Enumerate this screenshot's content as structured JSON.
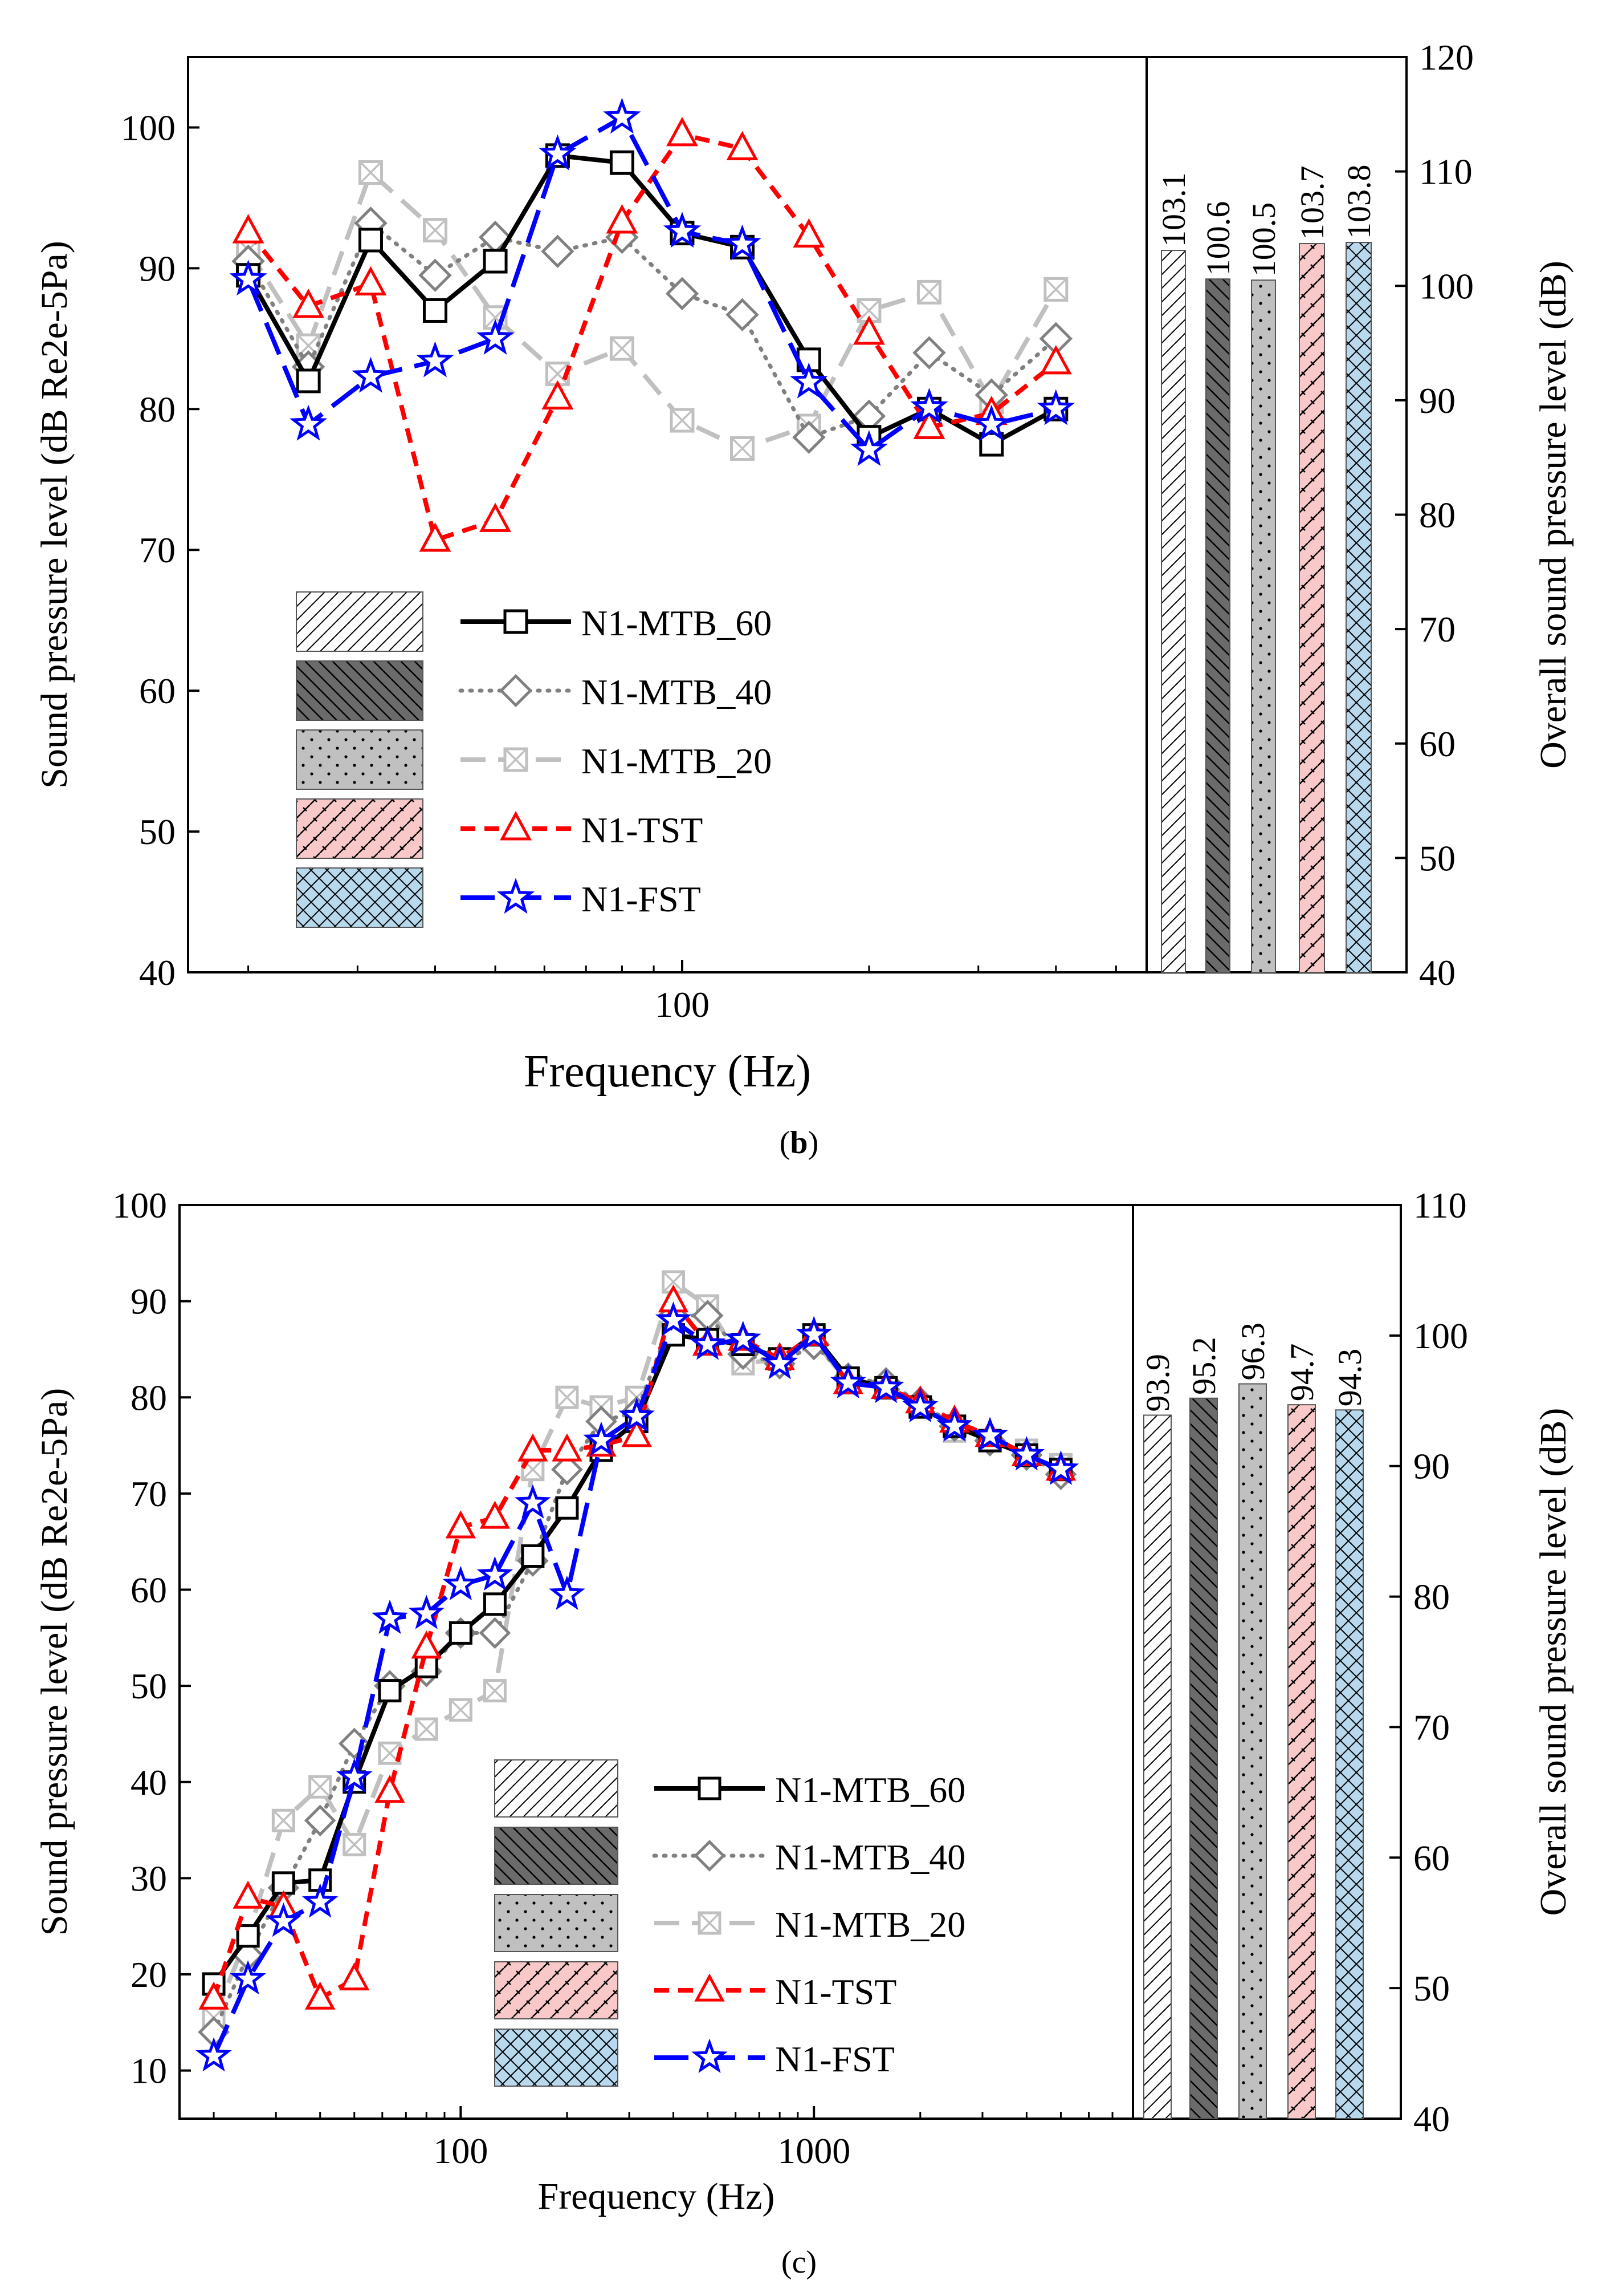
{
  "series_styles": [
    {
      "name": "N1-MTB_60",
      "color": "#000000",
      "marker": "square",
      "dash": "solid"
    },
    {
      "name": "N1-MTB_40",
      "color": "#808080",
      "marker": "diamond",
      "dash": "dot"
    },
    {
      "name": "N1-MTB_20",
      "color": "#c0c0c0",
      "marker": "boxx",
      "dash": "dash"
    },
    {
      "name": "N1-TST",
      "color": "#ff0000",
      "marker": "triangle",
      "dash": "shortdash"
    },
    {
      "name": "N1-FST",
      "color": "#0000ff",
      "marker": "star",
      "dash": "longdash"
    }
  ],
  "bar_fills": [
    "#ffffff",
    "#6b6b6b",
    "#c0c0c0",
    "#f9c8c8",
    "#b8d8ee"
  ],
  "chart_data": [
    {
      "type": "line",
      "caption": "(b)",
      "caption_bold": "b",
      "xlabel": "Frequency (Hz)",
      "ylabel": "Sound pressure level (dB Re2e-5Pa)",
      "ylabel_right": "Overall sound pressure level (dB)",
      "xscale": "log",
      "xlim": [
        16,
        560
      ],
      "ylim": [
        40,
        105
      ],
      "ylim_right": [
        40,
        120
      ],
      "xticks": [
        100
      ],
      "xtick_labels": [
        "100"
      ],
      "yticks": [
        40,
        50,
        60,
        70,
        80,
        90,
        100
      ],
      "ytick_labels": [
        "40",
        "50",
        "60",
        "70",
        "80",
        "90",
        "100"
      ],
      "yticks_right": [
        40,
        50,
        60,
        70,
        80,
        90,
        100,
        110,
        120
      ],
      "ytick_labels_right": [
        "40",
        "50",
        "60",
        "70",
        "80",
        "90",
        "100",
        "110",
        "120"
      ],
      "x": [
        20,
        25,
        31.5,
        40,
        50,
        63,
        80,
        100,
        125,
        160,
        200,
        250,
        315,
        400
      ],
      "series": [
        {
          "name": "N1-MTB_60",
          "values": [
            89.5,
            82,
            92,
            87,
            90.5,
            98,
            97.5,
            92.5,
            91.5,
            83.5,
            78,
            80,
            77.5,
            80
          ]
        },
        {
          "name": "N1-MTB_40",
          "values": [
            90.5,
            83,
            93.2,
            89.5,
            92.2,
            91.2,
            92.2,
            88.2,
            86.7,
            78,
            79.5,
            84,
            81,
            85
          ]
        },
        {
          "name": "N1-MTB_20",
          "values": [
            91.3,
            84.5,
            96.8,
            92.7,
            86.5,
            82.5,
            84.3,
            79.2,
            77.2,
            78.8,
            87,
            88.3,
            80.5,
            88.5
          ]
        },
        {
          "name": "N1-TST",
          "values": [
            92.6,
            87.3,
            88.9,
            70.7,
            72.1,
            80.8,
            93.3,
            99.5,
            98.5,
            92.3,
            85.4,
            78.7,
            79.7,
            83.3
          ]
        },
        {
          "name": "N1-FST",
          "values": [
            89.2,
            78.9,
            82.3,
            83.4,
            85,
            98.1,
            100.7,
            92.6,
            91.7,
            81.9,
            77.1,
            80.1,
            78.9,
            80
          ]
        }
      ],
      "bars": {
        "values": [
          103.1,
          100.6,
          100.5,
          103.7,
          103.8
        ],
        "labels": [
          "103.1",
          "100.6",
          "100.5",
          "103.7",
          "103.8"
        ]
      },
      "legend": {
        "labels": [
          "N1-MTB_60",
          "N1-MTB_40",
          "N1-MTB_20",
          "N1-TST",
          "N1-FST"
        ],
        "placement": "lower-left"
      }
    },
    {
      "type": "line",
      "caption": "(c)",
      "caption_bold": "",
      "xlabel": "Frequency (Hz)",
      "ylabel": "Sound pressure level (dB Re2e-5Pa)",
      "ylabel_right": "Overall sound pressure level (dB)",
      "xscale": "log",
      "xlim": [
        16,
        8000
      ],
      "ylim": [
        5,
        100
      ],
      "ylim_right": [
        40,
        110
      ],
      "xticks": [
        100,
        1000
      ],
      "xtick_labels": [
        "100",
        "1000"
      ],
      "yticks": [
        10,
        20,
        30,
        40,
        50,
        60,
        70,
        80,
        90,
        100
      ],
      "ytick_labels": [
        "10",
        "20",
        "30",
        "40",
        "50",
        "60",
        "70",
        "80",
        "90",
        "100"
      ],
      "yticks_right": [
        40,
        50,
        60,
        70,
        80,
        90,
        100,
        110
      ],
      "ytick_labels_right": [
        "40",
        "50",
        "60",
        "70",
        "80",
        "90",
        "100",
        "110"
      ],
      "x": [
        20,
        25,
        31.5,
        40,
        50,
        63,
        80,
        100,
        125,
        160,
        200,
        250,
        315,
        400,
        500,
        630,
        800,
        1000,
        1250,
        1600,
        2000,
        2500,
        3150,
        4000,
        5000
      ],
      "series": [
        {
          "name": "N1-MTB_60",
          "values": [
            19,
            24,
            29.5,
            29.8,
            40,
            49.5,
            52,
            55.5,
            58.5,
            63.5,
            68.5,
            74.5,
            77.5,
            86.5,
            86,
            85.5,
            84,
            86.5,
            82,
            81,
            79,
            77,
            75.5,
            74,
            72.5
          ]
        },
        {
          "name": "N1-MTB_40",
          "values": [
            14,
            22,
            29,
            36,
            44,
            50,
            51.5,
            55.5,
            55.5,
            63,
            72.5,
            77.5,
            78.5,
            88.5,
            88.5,
            84.5,
            83.5,
            85.5,
            82,
            81.5,
            79.5,
            77,
            75.5,
            74,
            72
          ]
        },
        {
          "name": "N1-MTB_20",
          "values": [
            15.5,
            24,
            36,
            39.5,
            33.5,
            43,
            45.5,
            47.5,
            49.5,
            72.5,
            80,
            79,
            80,
            92,
            89.5,
            83.5,
            84,
            86,
            81.5,
            81,
            79,
            76.5,
            75.5,
            74.5,
            73
          ]
        },
        {
          "name": "N1-TST",
          "values": [
            17.5,
            28,
            27,
            17.5,
            19.5,
            39,
            54,
            66.5,
            67.5,
            74.5,
            74.5,
            75,
            76,
            90,
            85.5,
            86,
            84,
            86.5,
            81.5,
            81,
            79.5,
            77.5,
            76,
            74,
            72.5
          ]
        },
        {
          "name": "N1-FST",
          "values": [
            11.5,
            19.5,
            25.5,
            27.5,
            40.5,
            57,
            57.5,
            60.5,
            61.5,
            69,
            59.5,
            75.5,
            78,
            88,
            85.5,
            86,
            83.5,
            86.5,
            81.5,
            81,
            79,
            77,
            76,
            74,
            72.5
          ]
        }
      ],
      "bars": {
        "values": [
          93.9,
          95.2,
          96.3,
          94.7,
          94.3
        ],
        "labels": [
          "93.9",
          "95.2",
          "96.3",
          "94.7",
          "94.3"
        ]
      },
      "legend": {
        "labels": [
          "N1-MTB_60",
          "N1-MTB_40",
          "N1-MTB_20",
          "N1-TST",
          "N1-FST"
        ],
        "placement": "lower-center"
      }
    }
  ]
}
